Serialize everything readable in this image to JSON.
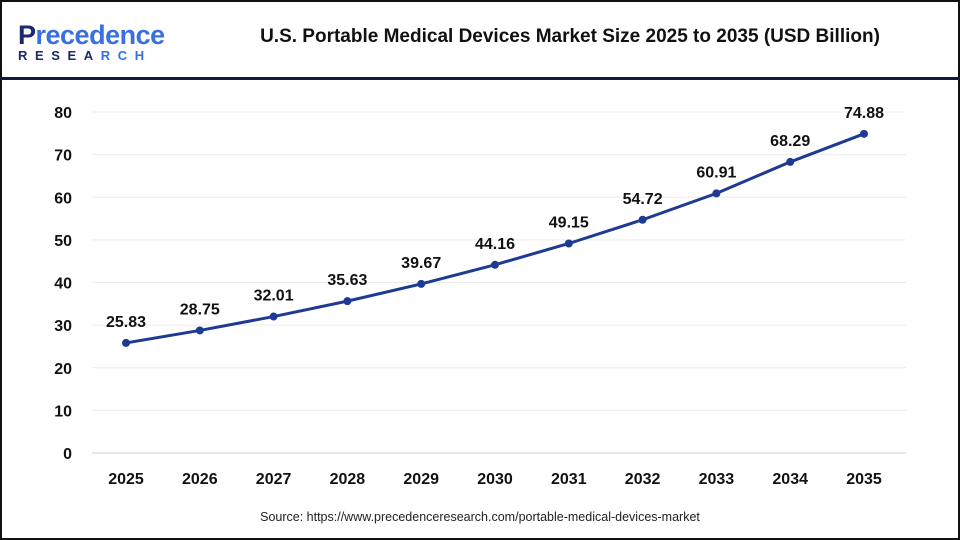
{
  "logo": {
    "line1": "Precedence",
    "line2": "RESEARCH"
  },
  "header": {
    "title": "U.S. Portable Medical Devices Market Size 2025 to 2035 (USD Billion)"
  },
  "source": "Source: https://www.precedenceresearch.com/portable-medical-devices-market",
  "chart_data": {
    "type": "line",
    "title": "U.S. Portable Medical Devices Market Size 2025 to 2035 (USD Billion)",
    "categories": [
      "2025",
      "2026",
      "2027",
      "2028",
      "2029",
      "2030",
      "2031",
      "2032",
      "2033",
      "2034",
      "2035"
    ],
    "values": [
      25.83,
      28.75,
      32.01,
      35.63,
      39.67,
      44.16,
      49.15,
      54.72,
      60.91,
      68.29,
      74.88
    ],
    "data_labels": [
      "25.83",
      "28.75",
      "32.01",
      "35.63",
      "39.67",
      "44.16",
      "49.15",
      "54.72",
      "60.91",
      "68.29",
      "74.88"
    ],
    "yticks": [
      "0",
      "10",
      "20",
      "30",
      "40",
      "50",
      "60",
      "70",
      "80"
    ],
    "ylim": [
      0,
      80
    ],
    "grid": true,
    "line_color": "#1f3a93"
  }
}
